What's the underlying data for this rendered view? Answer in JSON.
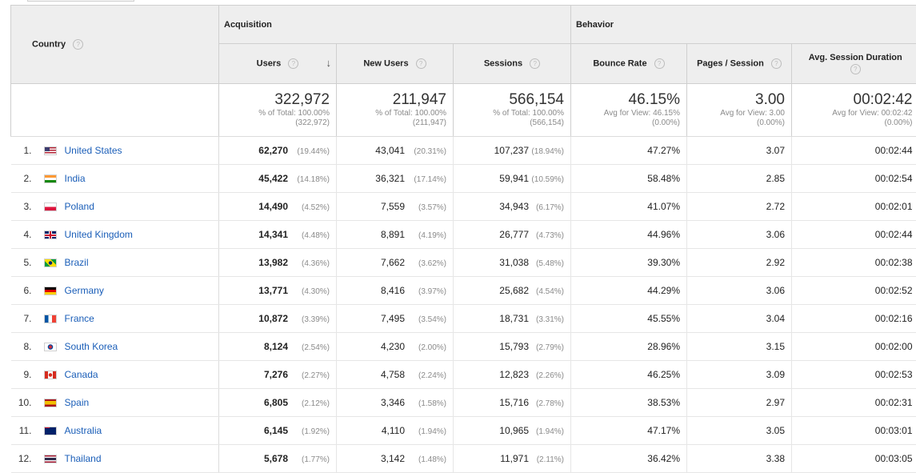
{
  "headers": {
    "country": "Country",
    "acquisition": "Acquisition",
    "behavior": "Behavior",
    "users": "Users",
    "new_users": "New Users",
    "sessions": "Sessions",
    "bounce_rate": "Bounce Rate",
    "pages_session": "Pages / Session",
    "avg_duration": "Avg. Session Duration",
    "help_icon": "?",
    "sort_icon": "↓"
  },
  "totals": {
    "users": {
      "value": "322,972",
      "sub1": "% of Total: 100.00%",
      "sub2": "(322,972)"
    },
    "new_users": {
      "value": "211,947",
      "sub1": "% of Total: 100.00%",
      "sub2": "(211,947)"
    },
    "sessions": {
      "value": "566,154",
      "sub1": "% of Total: 100.00%",
      "sub2": "(566,154)"
    },
    "bounce_rate": {
      "value": "46.15%",
      "sub1": "Avg for View: 46.15%",
      "sub2": "(0.00%)"
    },
    "pages_session": {
      "value": "3.00",
      "sub1": "Avg for View: 3.00",
      "sub2": "(0.00%)"
    },
    "avg_duration": {
      "value": "00:02:42",
      "sub1": "Avg for View: 00:02:42",
      "sub2": "(0.00%)"
    }
  },
  "rows": [
    {
      "rank": "1.",
      "country": "United States",
      "flag": "us-flag",
      "users": "62,270",
      "users_pct": "(19.44%)",
      "new_users": "43,041",
      "new_users_pct": "(20.31%)",
      "sessions": "107,237",
      "sessions_pct": "(18.94%)",
      "bounce": "47.27%",
      "pages": "3.07",
      "duration": "00:02:44"
    },
    {
      "rank": "2.",
      "country": "India",
      "flag": "in-flag",
      "users": "45,422",
      "users_pct": "(14.18%)",
      "new_users": "36,321",
      "new_users_pct": "(17.14%)",
      "sessions": "59,941",
      "sessions_pct": "(10.59%)",
      "bounce": "58.48%",
      "pages": "2.85",
      "duration": "00:02:54"
    },
    {
      "rank": "3.",
      "country": "Poland",
      "flag": "pl-flag",
      "users": "14,490",
      "users_pct": "(4.52%)",
      "new_users": "7,559",
      "new_users_pct": "(3.57%)",
      "sessions": "34,943",
      "sessions_pct": "(6.17%)",
      "bounce": "41.07%",
      "pages": "2.72",
      "duration": "00:02:01"
    },
    {
      "rank": "4.",
      "country": "United Kingdom",
      "flag": "gb-flag",
      "users": "14,341",
      "users_pct": "(4.48%)",
      "new_users": "8,891",
      "new_users_pct": "(4.19%)",
      "sessions": "26,777",
      "sessions_pct": "(4.73%)",
      "bounce": "44.96%",
      "pages": "3.06",
      "duration": "00:02:44"
    },
    {
      "rank": "5.",
      "country": "Brazil",
      "flag": "br-flag",
      "users": "13,982",
      "users_pct": "(4.36%)",
      "new_users": "7,662",
      "new_users_pct": "(3.62%)",
      "sessions": "31,038",
      "sessions_pct": "(5.48%)",
      "bounce": "39.30%",
      "pages": "2.92",
      "duration": "00:02:38"
    },
    {
      "rank": "6.",
      "country": "Germany",
      "flag": "de-flag",
      "users": "13,771",
      "users_pct": "(4.30%)",
      "new_users": "8,416",
      "new_users_pct": "(3.97%)",
      "sessions": "25,682",
      "sessions_pct": "(4.54%)",
      "bounce": "44.29%",
      "pages": "3.06",
      "duration": "00:02:52"
    },
    {
      "rank": "7.",
      "country": "France",
      "flag": "fr-flag",
      "users": "10,872",
      "users_pct": "(3.39%)",
      "new_users": "7,495",
      "new_users_pct": "(3.54%)",
      "sessions": "18,731",
      "sessions_pct": "(3.31%)",
      "bounce": "45.55%",
      "pages": "3.04",
      "duration": "00:02:16"
    },
    {
      "rank": "8.",
      "country": "South Korea",
      "flag": "kr-flag",
      "users": "8,124",
      "users_pct": "(2.54%)",
      "new_users": "4,230",
      "new_users_pct": "(2.00%)",
      "sessions": "15,793",
      "sessions_pct": "(2.79%)",
      "bounce": "28.96%",
      "pages": "3.15",
      "duration": "00:02:00"
    },
    {
      "rank": "9.",
      "country": "Canada",
      "flag": "ca-flag",
      "users": "7,276",
      "users_pct": "(2.27%)",
      "new_users": "4,758",
      "new_users_pct": "(2.24%)",
      "sessions": "12,823",
      "sessions_pct": "(2.26%)",
      "bounce": "46.25%",
      "pages": "3.09",
      "duration": "00:02:53"
    },
    {
      "rank": "10.",
      "country": "Spain",
      "flag": "es-flag",
      "users": "6,805",
      "users_pct": "(2.12%)",
      "new_users": "3,346",
      "new_users_pct": "(1.58%)",
      "sessions": "15,716",
      "sessions_pct": "(2.78%)",
      "bounce": "38.53%",
      "pages": "2.97",
      "duration": "00:02:31"
    },
    {
      "rank": "11.",
      "country": "Australia",
      "flag": "au-flag",
      "users": "6,145",
      "users_pct": "(1.92%)",
      "new_users": "4,110",
      "new_users_pct": "(1.94%)",
      "sessions": "10,965",
      "sessions_pct": "(1.94%)",
      "bounce": "47.17%",
      "pages": "3.05",
      "duration": "00:03:01"
    },
    {
      "rank": "12.",
      "country": "Thailand",
      "flag": "th-flag",
      "users": "5,678",
      "users_pct": "(1.77%)",
      "new_users": "3,142",
      "new_users_pct": "(1.48%)",
      "sessions": "11,971",
      "sessions_pct": "(2.11%)",
      "bounce": "36.42%",
      "pages": "3.38",
      "duration": "00:03:05"
    }
  ],
  "colors": {
    "link": "#1a5eb8",
    "header_bg": "#eeeeee",
    "border": "#cfcfcf"
  }
}
